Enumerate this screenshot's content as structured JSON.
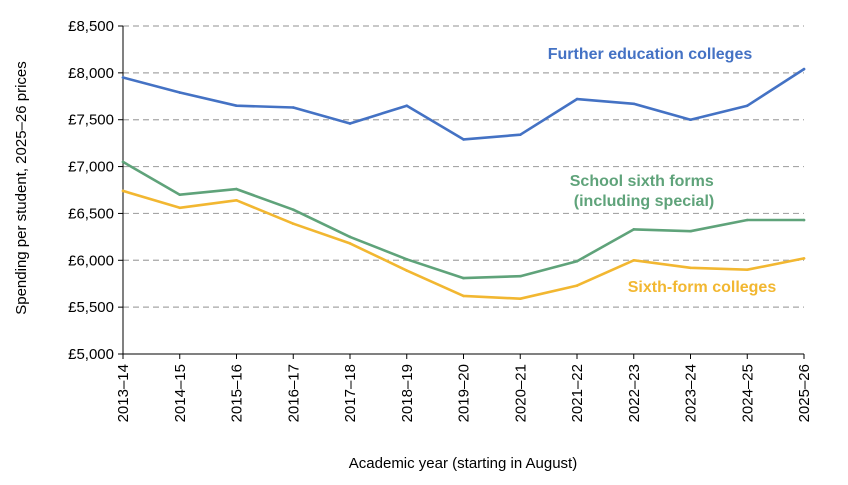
{
  "chart_data": {
    "type": "line",
    "title": "",
    "xlabel": "Academic year (starting in August)",
    "ylabel": "Spending per student, 2025–26 prices",
    "ylim": [
      5000,
      8500
    ],
    "yticks": [
      5000,
      5500,
      6000,
      6500,
      7000,
      7500,
      8000,
      8500
    ],
    "ytick_labels": [
      "£5,000",
      "£5,500",
      "£6,000",
      "£6,500",
      "£7,000",
      "£7,500",
      "£8,000",
      "£8,500"
    ],
    "grid": "horizontal dashed",
    "legend": "inline labels",
    "categories": [
      "2013–14",
      "2014–15",
      "2015–16",
      "2016–17",
      "2017–18",
      "2018–19",
      "2019–20",
      "2020–21",
      "2021–22",
      "2022–23",
      "2023–24",
      "2024–25",
      "2025–26"
    ],
    "series": [
      {
        "name": "Further education colleges",
        "color": "#4472C4",
        "values": [
          7950,
          7790,
          7650,
          7630,
          7460,
          7650,
          7290,
          7340,
          7720,
          7670,
          7500,
          7650,
          8040
        ]
      },
      {
        "name": "School sixth forms (including special)",
        "label_lines": [
          "School sixth forms",
          "(including special)"
        ],
        "color": "#5FA37A",
        "values": [
          7050,
          6700,
          6760,
          6540,
          6250,
          6010,
          5810,
          5830,
          5990,
          6330,
          6310,
          6430,
          6430
        ]
      },
      {
        "name": "Sixth-form colleges",
        "color": "#F2B731",
        "values": [
          6740,
          6560,
          6640,
          6390,
          6180,
          5890,
          5620,
          5590,
          5730,
          6000,
          5920,
          5900,
          6020
        ]
      }
    ]
  }
}
